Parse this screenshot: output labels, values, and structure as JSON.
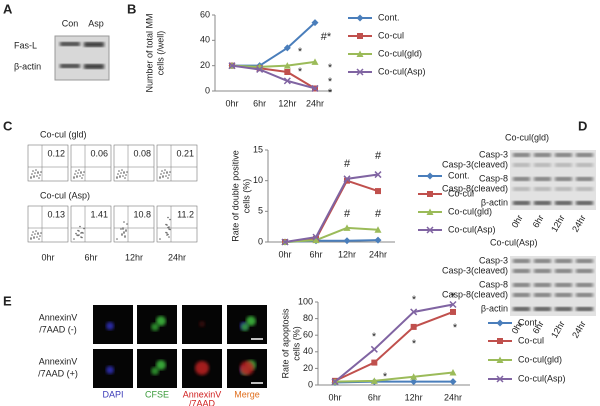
{
  "panel_labels": [
    "A",
    "B",
    "C",
    "D",
    "E"
  ],
  "blot_a": {
    "lanes": [
      "Con",
      "Asp"
    ],
    "rows": [
      "Fas-L",
      "β-actin"
    ]
  },
  "flow": {
    "rows": [
      {
        "title": "Co-cul (gld)",
        "values": [
          "0.12",
          "0.06",
          "0.08",
          "0.21"
        ]
      },
      {
        "title": "Co-cul (Asp)",
        "values": [
          "0.13",
          "1.41",
          "10.8",
          "11.2"
        ]
      }
    ],
    "times": [
      "0hr",
      "6hr",
      "12hr",
      "24hr"
    ]
  },
  "blot_d": [
    {
      "title": "Co-cul(gld)",
      "rows": [
        "Casp-3",
        "Casp-3(cleaved)",
        "Casp-8",
        "Casp-8(cleaved)",
        "β-actin"
      ],
      "lanes": [
        "0hr",
        "6hr",
        "12hr",
        "24hr"
      ]
    },
    {
      "title": "Co-cul(Asp)",
      "rows": [
        "Casp-3",
        "Casp-3(cleaved)",
        "Casp-8",
        "Casp-8(cleaved)",
        "β-actin"
      ],
      "lanes": [
        "0hr",
        "6hr",
        "12hr",
        "24hr"
      ]
    }
  ],
  "microscopy": {
    "rows": [
      [
        "AnnexinV",
        "/7AAD (-)"
      ],
      [
        "AnnexinV",
        "/7AAD (+)"
      ]
    ],
    "columns": [
      [
        "DAPI"
      ],
      [
        "CFSE"
      ],
      [
        "AnnexinV",
        "/7AAD"
      ],
      [
        "Merge"
      ]
    ],
    "column_colors": [
      "#3a3ab8",
      "#3a9a3a",
      "#d02020",
      "#e07020"
    ]
  },
  "chart_data": [
    {
      "type": "line",
      "y_label": [
        "Number of total MM",
        "cells (/well)"
      ],
      "categories": [
        "0hr",
        "6hr",
        "12hr",
        "24hr"
      ],
      "ylim": [
        0,
        60
      ],
      "yticks": [
        0,
        20,
        40,
        60
      ],
      "series": [
        {
          "name": "Cont.",
          "color": "#4a7ebb",
          "marker": "diamond",
          "values": [
            20,
            20,
            34,
            54
          ]
        },
        {
          "name": "Co-cul",
          "color": "#c0504d",
          "marker": "square",
          "values": [
            20,
            18,
            15,
            2
          ]
        },
        {
          "name": "Co-cul(gld)",
          "color": "#9bbb59",
          "marker": "triangle",
          "values": [
            20,
            19,
            20,
            23
          ]
        },
        {
          "name": "Co-cul(Asp)",
          "color": "#8064a2",
          "marker": "cross",
          "values": [
            20,
            17,
            8,
            2
          ]
        }
      ],
      "annotations": [
        "#*",
        "*",
        "*",
        "*",
        "*",
        "*"
      ]
    },
    {
      "type": "line",
      "y_label": [
        "Rate of double positive",
        "cells (%)"
      ],
      "categories": [
        "0hr",
        "6hr",
        "12hr",
        "24hr"
      ],
      "ylim": [
        0,
        15
      ],
      "yticks": [
        0,
        5,
        10,
        15
      ],
      "series": [
        {
          "name": "Cont.",
          "color": "#4a7ebb",
          "marker": "diamond",
          "values": [
            0,
            0.2,
            0.2,
            0.3
          ]
        },
        {
          "name": "Co-cul",
          "color": "#c0504d",
          "marker": "square",
          "values": [
            0,
            0.5,
            10,
            8.3
          ]
        },
        {
          "name": "Co-cul(gld)",
          "color": "#9bbb59",
          "marker": "triangle",
          "values": [
            0,
            0.3,
            2.3,
            2
          ]
        },
        {
          "name": "Co-cul(Asp)",
          "color": "#8064a2",
          "marker": "cross",
          "values": [
            0,
            0.8,
            10.3,
            11
          ]
        }
      ],
      "annotations": [
        "#",
        "#",
        "#",
        "#"
      ]
    },
    {
      "type": "line",
      "y_label": [
        "Rate of apoptosis",
        "cells (%)"
      ],
      "categories": [
        "0hr",
        "6hr",
        "12hr",
        "24hr"
      ],
      "ylim": [
        0,
        100
      ],
      "yticks": [
        0,
        20,
        40,
        60,
        80,
        100
      ],
      "series": [
        {
          "name": "Cont.",
          "color": "#4a7ebb",
          "marker": "diamond",
          "values": [
            3,
            4,
            4,
            4
          ]
        },
        {
          "name": "Co-cul",
          "color": "#c0504d",
          "marker": "square",
          "values": [
            5,
            27,
            70,
            88
          ]
        },
        {
          "name": "Co-cul(gld)",
          "color": "#9bbb59",
          "marker": "triangle",
          "values": [
            4,
            5,
            10,
            15
          ]
        },
        {
          "name": "Co-cul(Asp)",
          "color": "#8064a2",
          "marker": "cross",
          "values": [
            4,
            43,
            88,
            97
          ]
        }
      ],
      "annotations": [
        "*",
        "*",
        "*",
        "*",
        "*",
        "*"
      ]
    }
  ]
}
